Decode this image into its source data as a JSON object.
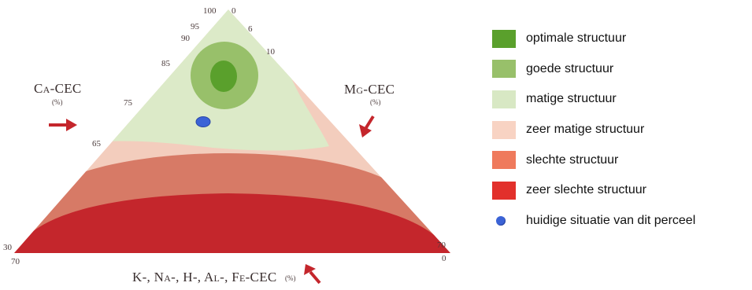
{
  "diagram": {
    "left_axis": {
      "title": "Ca-CEC",
      "unit": "(%)",
      "ticks": [
        "100",
        "95",
        "90",
        "85",
        "75",
        "65",
        "30"
      ]
    },
    "right_axis": {
      "title": "Mg-CEC",
      "unit": "(%)",
      "ticks": [
        "0",
        "6",
        "10",
        "70"
      ]
    },
    "bottom_axis": {
      "title": "K-, Na-, H-, Al-, Fe-CEC",
      "unit": "(%)",
      "ticks": [
        "70",
        "0"
      ]
    },
    "colors": {
      "optimal": "#5aa02c",
      "good": "#98c06a",
      "moderate": "#dceac8",
      "very_moderate": "#f3cdbd",
      "poor": "#d77a66",
      "very_poor": "#c4262c",
      "arrow": "#c4262c",
      "current": "#3b63d6"
    }
  },
  "legend": {
    "items": [
      {
        "label": "optimale structuur",
        "color": "#5aa02c"
      },
      {
        "label": "goede structuur",
        "color": "#98c06a"
      },
      {
        "label": "matige structuur",
        "color": "#d8e8c4"
      },
      {
        "label": "zeer matige structuur",
        "color": "#f8d3c3"
      },
      {
        "label": "slechte structuur",
        "color": "#ef7a5c"
      },
      {
        "label": "zeer slechte structuur",
        "color": "#e2302b"
      }
    ],
    "current": {
      "label": "huidige situatie van dit perceel",
      "icon": "blue-dot-icon"
    }
  }
}
